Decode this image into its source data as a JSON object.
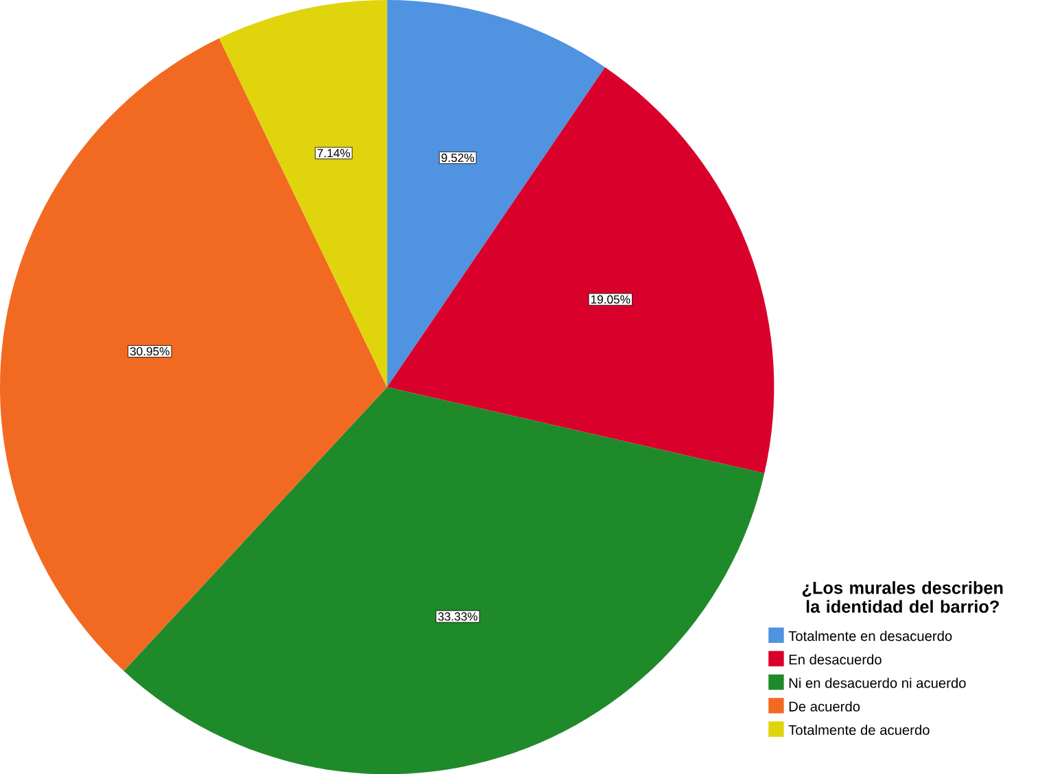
{
  "chart_data": {
    "type": "pie",
    "legend_title": "¿Los murales describen la identidad del barrio?",
    "categories": [
      "Totalmente en desacuerdo",
      "En desacuerdo",
      "Ni en desacuerdo ni acuerdo",
      "De acuerdo",
      "Totalmente de acuerdo"
    ],
    "values": [
      9.52,
      19.05,
      33.33,
      30.95,
      7.14
    ],
    "value_labels": [
      "9.52%",
      "19.05%",
      "33.33%",
      "30.95%",
      "7.14%"
    ],
    "colors": [
      "#5093e0",
      "#d9002b",
      "#1f8a2a",
      "#f26a22",
      "#e0d40d"
    ],
    "legend": "bottom right"
  }
}
